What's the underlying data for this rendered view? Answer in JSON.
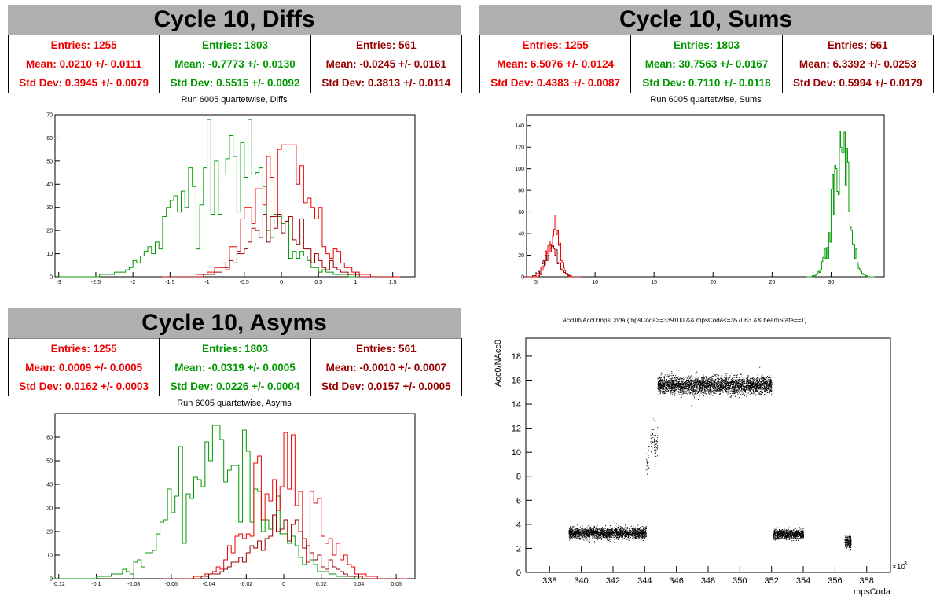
{
  "colors": {
    "red": "#ee0000",
    "green": "#009900",
    "darkred": "#990000"
  },
  "diffs": {
    "title": "Cycle 10, Diffs",
    "subtitle": "Run 6005 quartetwise, Diffs",
    "stats": [
      {
        "entries": "Entries: 1255",
        "mean": "Mean: 0.0210 +/- 0.0111",
        "std": "Std Dev: 0.3945 +/- 0.0079",
        "color": "#ee0000"
      },
      {
        "entries": "Entries: 1803",
        "mean": "Mean: -0.7773 +/- 0.0130",
        "std": "Std Dev: 0.5515 +/- 0.0092",
        "color": "#009900"
      },
      {
        "entries": "Entries: 561",
        "mean": "Mean: -0.0245 +/- 0.0161",
        "std": "Std Dev: 0.3813 +/- 0.0114",
        "color": "#990000"
      }
    ]
  },
  "sums": {
    "title": "Cycle 10, Sums",
    "subtitle": "Run 6005 quartetwise, Sums",
    "stats": [
      {
        "entries": "Entries: 1255",
        "mean": "Mean: 6.5076 +/- 0.0124",
        "std": "Std Dev: 0.4383 +/- 0.0087",
        "color": "#ee0000"
      },
      {
        "entries": "Entries: 1803",
        "mean": "Mean: 30.7563 +/- 0.0167",
        "std": "Std Dev: 0.7110 +/- 0.0118",
        "color": "#009900"
      },
      {
        "entries": "Entries: 561",
        "mean": "Mean: 6.3392 +/- 0.0253",
        "std": "Std Dev: 0.5994 +/- 0.0179",
        "color": "#990000"
      }
    ]
  },
  "asyms": {
    "title": "Cycle 10, Asyms",
    "subtitle": "Run 6005 quartetwise, Asyms",
    "stats": [
      {
        "entries": "Entries: 1255",
        "mean": "Mean: 0.0009 +/- 0.0005",
        "std": "Std Dev: 0.0162 +/- 0.0003",
        "color": "#ee0000"
      },
      {
        "entries": "Entries: 1803",
        "mean": "Mean: -0.0319 +/- 0.0005",
        "std": "Std Dev: 0.0226 +/- 0.0004",
        "color": "#009900"
      },
      {
        "entries": "Entries: 561",
        "mean": "Mean: -0.0010 +/- 0.0007",
        "std": "Std Dev: 0.0157 +/- 0.0005",
        "color": "#990000"
      }
    ]
  },
  "chart_data": [
    {
      "id": "diffs",
      "type": "histogram",
      "title": "Run 6005 quartetwise, Diffs",
      "xlim": [
        -3.05,
        1.8
      ],
      "ylim": [
        0,
        70
      ],
      "xticks": [
        -3,
        -2.5,
        -2,
        -1.5,
        -1,
        -0.5,
        0,
        0.5,
        1,
        1.5
      ],
      "xticklabels": [
        "-3",
        "-2.5",
        "-2",
        "-1.5",
        "-1",
        "-0.5",
        "0",
        "0.5",
        "1",
        "1.5"
      ],
      "yticks": [
        0,
        10,
        20,
        30,
        40,
        50,
        60,
        70
      ],
      "series": [
        {
          "color": "#009900",
          "mean": -0.7773,
          "std": 0.5515,
          "entries": 1803,
          "binwidth": 0.05,
          "peak": 68
        },
        {
          "color": "#ee0000",
          "mean": 0.021,
          "std": 0.3945,
          "entries": 1255,
          "binwidth": 0.05,
          "peak": 57
        },
        {
          "color": "#990000",
          "mean": -0.0245,
          "std": 0.3813,
          "entries": 561,
          "binwidth": 0.05,
          "peak": 27
        }
      ]
    },
    {
      "id": "sums",
      "type": "histogram",
      "title": "Run 6005 quartetwise, Sums",
      "xlim": [
        4.2,
        34.5
      ],
      "ylim": [
        0,
        150
      ],
      "xticks": [
        5,
        10,
        15,
        20,
        25,
        30
      ],
      "xticklabels": [
        "5",
        "10",
        "15",
        "20",
        "25",
        "30"
      ],
      "yticks": [
        0,
        20,
        40,
        60,
        80,
        100,
        120,
        140
      ],
      "series": [
        {
          "color": "#ee0000",
          "mean": 6.5076,
          "std": 0.4383,
          "entries": 1255,
          "binwidth": 0.1,
          "peak": 60
        },
        {
          "color": "#990000",
          "mean": 6.3392,
          "std": 0.5994,
          "entries": 561,
          "binwidth": 0.1,
          "peak": 30
        },
        {
          "color": "#009900",
          "mean": 30.7563,
          "std": 0.711,
          "entries": 1803,
          "binwidth": 0.1,
          "peak": 146
        }
      ]
    },
    {
      "id": "asyms",
      "type": "histogram",
      "title": "Run 6005 quartetwise, Asyms",
      "xlim": [
        -0.122,
        0.07
      ],
      "ylim": [
        0,
        70
      ],
      "xticks": [
        -0.12,
        -0.1,
        -0.08,
        -0.06,
        -0.04,
        -0.02,
        0,
        0.02,
        0.04,
        0.06
      ],
      "xticklabels": [
        "-0.12",
        "-0.1",
        "-0.08",
        "-0.06",
        "-0.04",
        "-0.02",
        "0",
        "0.02",
        "0.04",
        "0.06"
      ],
      "yticks": [
        0,
        10,
        20,
        30,
        40,
        50,
        60
      ],
      "series": [
        {
          "color": "#009900",
          "mean": -0.0319,
          "std": 0.0226,
          "entries": 1803,
          "binwidth": 0.002,
          "peak": 65
        },
        {
          "color": "#ee0000",
          "mean": 0.0009,
          "std": 0.0162,
          "entries": 1255,
          "binwidth": 0.002,
          "peak": 62
        },
        {
          "color": "#990000",
          "mean": -0.001,
          "std": 0.0157,
          "entries": 561,
          "binwidth": 0.002,
          "peak": 27
        }
      ]
    },
    {
      "id": "scatter",
      "type": "scatter",
      "title": "Acc0/NAcc0:mpsCoda (mpsCoda>=339100 && mpsCoda<=357063 && beamState==1)",
      "xlabel": "mpsCoda",
      "ylabel": "Acc0/NAcc0",
      "xexponent": "×10",
      "xexponent_sup": "3",
      "xlim": [
        336.5,
        359.5
      ],
      "ylim": [
        0,
        19.5
      ],
      "xticks": [
        338,
        340,
        342,
        344,
        346,
        348,
        350,
        352,
        354,
        356,
        358
      ],
      "yticks": [
        0,
        2,
        4,
        6,
        8,
        10,
        12,
        14,
        16,
        18
      ],
      "clusters": [
        {
          "x": [
            339.2,
            344.1
          ],
          "y_center": 3.3,
          "y_spread": 0.45
        },
        {
          "x": [
            344.05,
            344.25
          ],
          "y_center": 9.5,
          "y_spread": 1.2
        },
        {
          "x": [
            344.35,
            344.8
          ],
          "y_center": 11.0,
          "y_spread": 1.5
        },
        {
          "x": [
            344.8,
            352.0
          ],
          "y_center": 15.6,
          "y_spread": 0.7
        },
        {
          "x": [
            352.1,
            354.0
          ],
          "y_center": 3.2,
          "y_spread": 0.4
        },
        {
          "x": [
            356.6,
            357.0
          ],
          "y_center": 2.6,
          "y_spread": 0.5
        }
      ]
    }
  ]
}
